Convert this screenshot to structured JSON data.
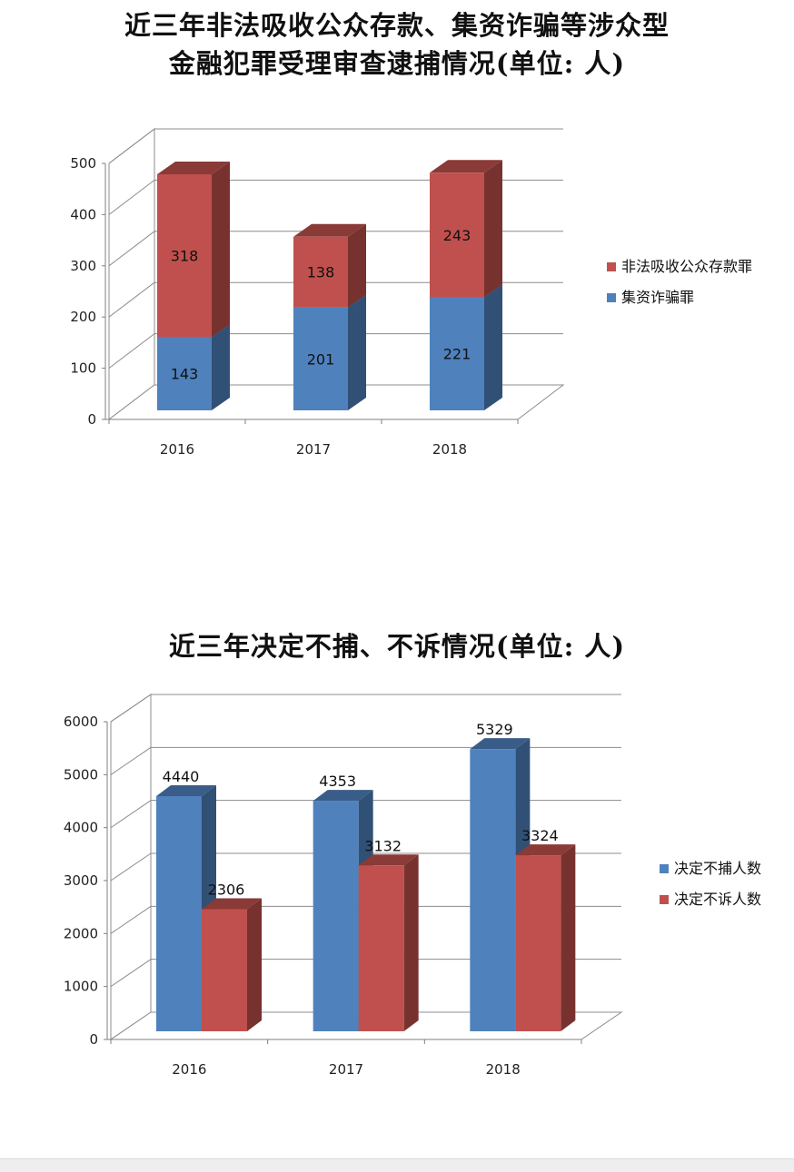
{
  "chart1": {
    "title_line1": "近三年非法吸收公众存款、集资诈骗等涉众型",
    "title_line2": "金融犯罪受理审查逮捕情况(单位: 人)",
    "chart_data": {
      "type": "bar",
      "stacked": true,
      "categories": [
        "2016",
        "2017",
        "2018"
      ],
      "series": [
        {
          "name": "集资诈骗罪",
          "values": [
            143,
            201,
            221
          ],
          "color": "#4f81bd"
        },
        {
          "name": "非法吸收公众存款罪",
          "values": [
            318,
            138,
            243
          ],
          "color": "#c0504d"
        }
      ],
      "ylim": [
        0,
        500
      ],
      "yticks": [
        "0",
        "100",
        "200",
        "300",
        "400",
        "500"
      ],
      "legend_order": [
        1,
        0
      ],
      "legend": "right",
      "grid": true
    }
  },
  "chart2": {
    "title": "近三年决定不捕、不诉情况(单位: 人)",
    "chart_data": {
      "type": "bar",
      "stacked": false,
      "categories": [
        "2016",
        "2017",
        "2018"
      ],
      "series": [
        {
          "name": "决定不捕人数",
          "values": [
            4440,
            4353,
            5329
          ],
          "color": "#4f81bd"
        },
        {
          "name": "决定不诉人数",
          "values": [
            2306,
            3132,
            3324
          ],
          "color": "#c0504d"
        }
      ],
      "ylim": [
        0,
        6000
      ],
      "yticks": [
        "0",
        "1000",
        "2000",
        "3000",
        "4000",
        "5000",
        "6000"
      ],
      "legend_order": [
        0,
        1
      ],
      "legend": "right",
      "grid": true
    }
  }
}
